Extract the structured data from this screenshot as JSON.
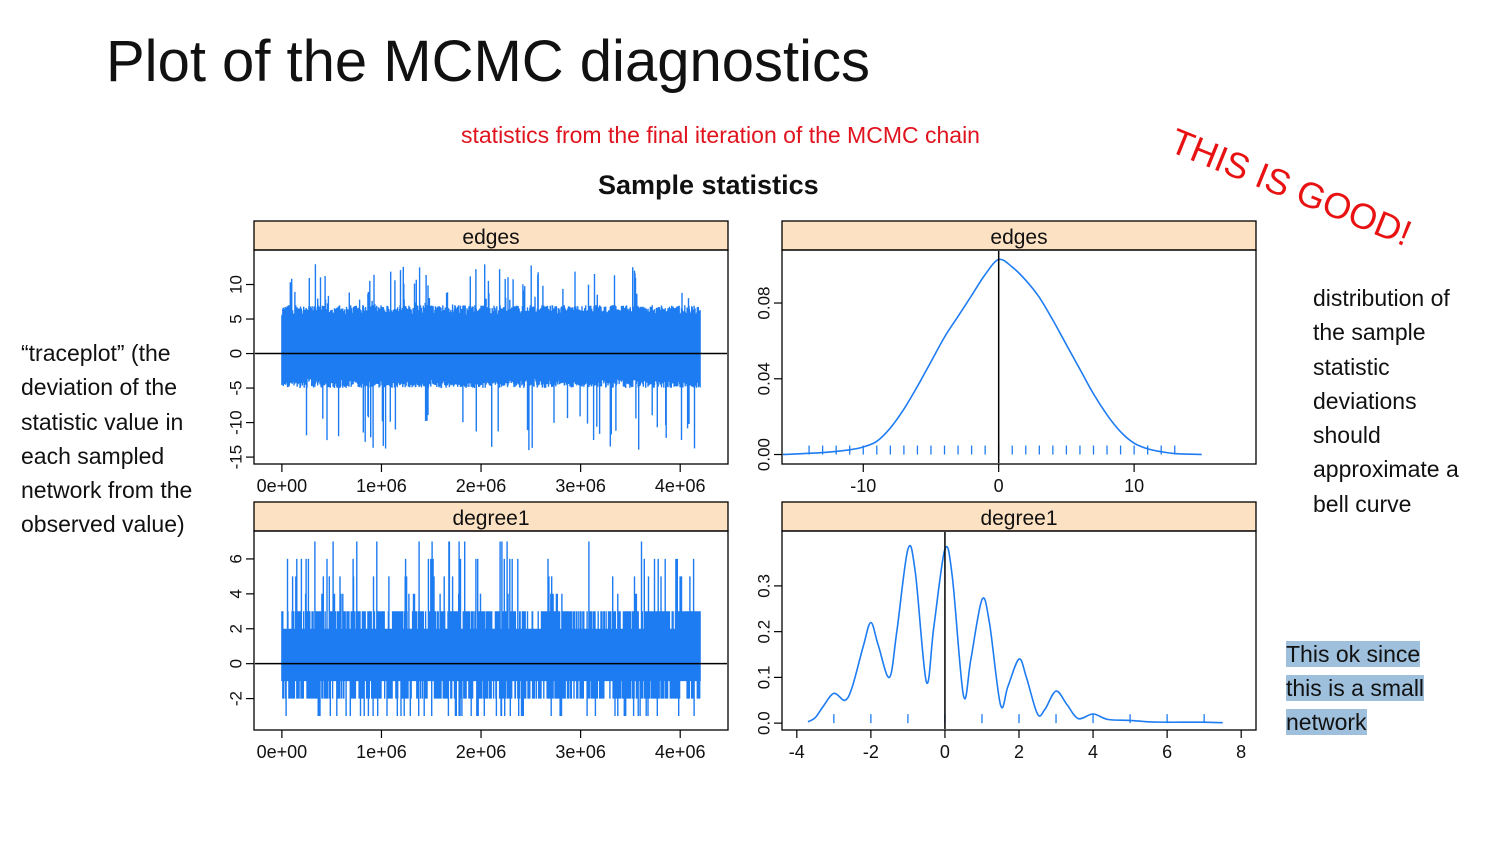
{
  "slide": {
    "title": "Plot of the MCMC diagnostics",
    "subtitle": "statistics from the final iteration of the MCMC chain",
    "stamp": "THIS IS GOOD!",
    "left_note": "“traceplot” (the deviation of the statistic value in each sampled network from the observed value)",
    "right_note": "distribution of the sample statistic deviations should approximate a bell curve",
    "ok_note": [
      "This ok since",
      "this is a small",
      "network"
    ],
    "colors": {
      "series": "#1e7cf2",
      "strip": "#fde1c3",
      "annotation_red": "#e0141e",
      "highlight": "#9ec0dc"
    }
  },
  "chart_data": [
    {
      "panel": "edges-trace",
      "type": "line",
      "title": "Sample statistics",
      "strip": "edges",
      "x_ticks": [
        "0e+00",
        "1e+06",
        "2e+06",
        "3e+06",
        "4e+06"
      ],
      "x_tick_values": [
        0,
        1000000,
        2000000,
        3000000,
        4000000
      ],
      "y_ticks": [
        "-15",
        "-10",
        "-5",
        "0",
        "5",
        "10"
      ],
      "y_tick_values": [
        -15,
        -10,
        -5,
        0,
        5,
        10
      ],
      "xlim": [
        -280000,
        4480000
      ],
      "ylim": [
        -16,
        15
      ],
      "x_range": [
        0,
        4200000
      ],
      "typical_band": [
        -5,
        7
      ],
      "extreme_range": [
        -14,
        13
      ],
      "reference_line": 0
    },
    {
      "panel": "edges-density",
      "type": "line",
      "strip": "edges",
      "x_ticks": [
        "-10",
        "0",
        "10"
      ],
      "x_tick_values": [
        -10,
        0,
        10
      ],
      "y_ticks": [
        "0.00",
        "0.04",
        "0.08"
      ],
      "y_tick_values": [
        0,
        0.04,
        0.08
      ],
      "xlim": [
        -16,
        19
      ],
      "ylim": [
        -0.005,
        0.108
      ],
      "x": [
        -16,
        -13,
        -11,
        -10,
        -9,
        -8,
        -7,
        -6,
        -5,
        -4,
        -3,
        -2,
        -1,
        0,
        1,
        2,
        3,
        4,
        5,
        6,
        7,
        8,
        9,
        10,
        11,
        12,
        13,
        15
      ],
      "y": [
        0.0,
        0.001,
        0.0025,
        0.004,
        0.007,
        0.014,
        0.024,
        0.036,
        0.049,
        0.062,
        0.073,
        0.084,
        0.095,
        0.103,
        0.099,
        0.092,
        0.083,
        0.071,
        0.058,
        0.045,
        0.032,
        0.021,
        0.012,
        0.006,
        0.003,
        0.0015,
        0.0005,
        0.0
      ],
      "rug": [
        -14,
        -13,
        -12,
        -11,
        -10,
        -9,
        -8,
        -7,
        -6,
        -5,
        -4,
        -3,
        -2,
        -1,
        0,
        1,
        2,
        3,
        4,
        5,
        6,
        7,
        8,
        9,
        10,
        11,
        12,
        13
      ],
      "reference_line": 0
    },
    {
      "panel": "degree1-trace",
      "type": "line",
      "strip": "degree1",
      "x_ticks": [
        "0e+00",
        "1e+06",
        "2e+06",
        "3e+06",
        "4e+06"
      ],
      "x_tick_values": [
        0,
        1000000,
        2000000,
        3000000,
        4000000
      ],
      "y_ticks": [
        "-2",
        "0",
        "2",
        "4",
        "6"
      ],
      "y_tick_values": [
        -2,
        0,
        2,
        4,
        6
      ],
      "xlim": [
        -280000,
        4480000
      ],
      "ylim": [
        -3.8,
        7.6
      ],
      "x_range": [
        0,
        4200000
      ],
      "typical_band": [
        -2,
        3
      ],
      "extreme_range": [
        -3,
        7
      ],
      "reference_line": 0
    },
    {
      "panel": "degree1-density",
      "type": "line",
      "strip": "degree1",
      "x_ticks": [
        "-4",
        "-2",
        "0",
        "2",
        "4",
        "6",
        "8"
      ],
      "x_tick_values": [
        -4,
        -2,
        0,
        2,
        4,
        6,
        8
      ],
      "y_ticks": [
        "0.0",
        "0.1",
        "0.2",
        "0.3"
      ],
      "y_tick_values": [
        0,
        0.1,
        0.2,
        0.3
      ],
      "xlim": [
        -4.4,
        8.4
      ],
      "ylim": [
        -0.015,
        0.42
      ],
      "x": [
        -3.7,
        -3.5,
        -3.3,
        -3.0,
        -2.7,
        -2.5,
        -2.2,
        -2.0,
        -1.8,
        -1.5,
        -1.3,
        -1.0,
        -0.8,
        -0.5,
        -0.3,
        0.0,
        0.2,
        0.5,
        0.7,
        1.0,
        1.2,
        1.5,
        1.7,
        2.0,
        2.2,
        2.5,
        2.7,
        3.0,
        3.3,
        3.6,
        4.0,
        4.4,
        5.0,
        5.5,
        6.0,
        6.5,
        7.0,
        7.5
      ],
      "y": [
        0.003,
        0.012,
        0.035,
        0.065,
        0.05,
        0.08,
        0.17,
        0.22,
        0.17,
        0.1,
        0.2,
        0.38,
        0.33,
        0.09,
        0.21,
        0.38,
        0.32,
        0.06,
        0.14,
        0.27,
        0.22,
        0.04,
        0.08,
        0.14,
        0.1,
        0.02,
        0.03,
        0.07,
        0.04,
        0.01,
        0.02,
        0.008,
        0.006,
        0.003,
        0.002,
        0.002,
        0.002,
        0.001
      ],
      "rug": [
        -3,
        -2,
        -1,
        0,
        1,
        2,
        3,
        4,
        5,
        6,
        7
      ],
      "reference_line": 0
    }
  ]
}
